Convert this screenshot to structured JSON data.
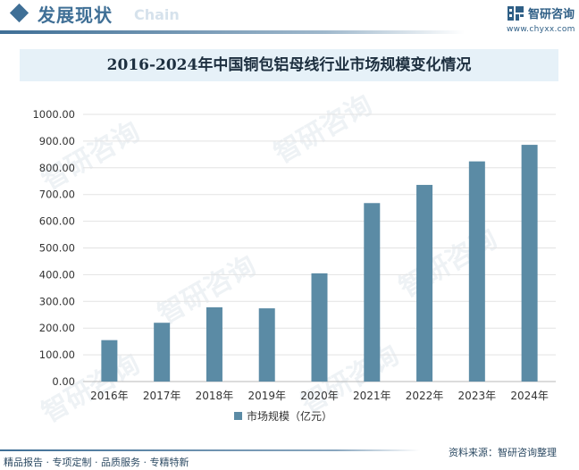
{
  "header": {
    "title": "发展现状",
    "subtitle": "Chain",
    "logo_name": "智研咨询",
    "logo_url": "www.chyxx.com"
  },
  "watermark_text": "智研咨询",
  "chart_data": {
    "type": "bar",
    "title": "2016-2024年中国铜包铝母线行业市场规模变化情况",
    "categories": [
      "2016年",
      "2017年",
      "2018年",
      "2019年",
      "2020年",
      "2021年",
      "2022年",
      "2023年",
      "2024年"
    ],
    "series": [
      {
        "name": "市场规模（亿元）",
        "values": [
          155,
          220,
          278,
          274,
          405,
          668,
          736,
          824,
          886
        ]
      }
    ],
    "y_ticks": [
      "0.00",
      "100.00",
      "200.00",
      "300.00",
      "400.00",
      "500.00",
      "600.00",
      "700.00",
      "800.00",
      "900.00",
      "1000.00"
    ],
    "ylim": [
      0,
      1000
    ],
    "grid": true,
    "legend": "bottom",
    "bar_color": "#5b8ba5"
  },
  "footer": {
    "left": "精品报告 · 专项定制 · 品质服务 · 专精特新",
    "right": "资料来源：智研咨询整理"
  }
}
